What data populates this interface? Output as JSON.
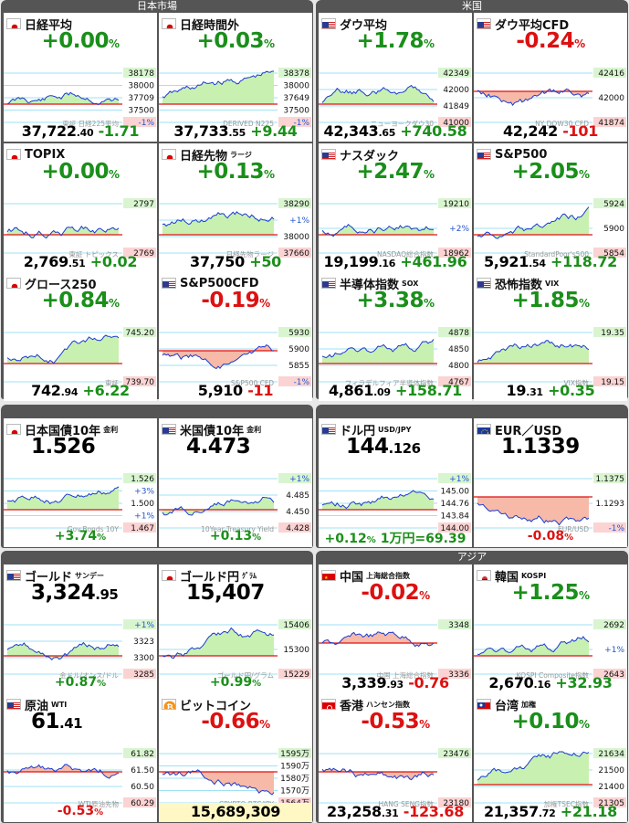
{
  "sections": {
    "japan": "日本市場",
    "us": "米国",
    "asia": "アジア"
  },
  "cards": {
    "nikkei": {
      "name": "日経平均",
      "sub": "",
      "change_pct_int": "+0.00",
      "change_pct_unit": "%",
      "ticks": [
        "38178",
        "38000",
        "37709",
        "37500",
        "-1%"
      ],
      "watermark": "東証 日経225平均",
      "price_int": "37,722",
      "price_dec": ".40",
      "change": "-1.71"
    },
    "nikkei_ah": {
      "name": "日経時間外",
      "sub": "",
      "change_pct_int": "+0.03",
      "change_pct_unit": "%",
      "ticks": [
        "38378",
        "38000",
        "37649",
        "37500",
        "-1%"
      ],
      "watermark": "DERIVED N225",
      "price_int": "37,733",
      "price_dec": ".55",
      "change": "+9.44"
    },
    "dow": {
      "name": "ダウ平均",
      "sub": "",
      "change_pct_int": "+1.78",
      "change_pct_unit": "%",
      "ticks": [
        "42349",
        "42000",
        "41849",
        "41000"
      ],
      "watermark": "ニューヨークダウ30",
      "price_int": "42,343",
      "price_dec": ".65",
      "change": "+740.58"
    },
    "dowcfd": {
      "name": "ダウ平均CFD",
      "sub": "",
      "change_pct_int": "-0.24",
      "change_pct_unit": "%",
      "ticks": [
        "42416",
        "42000",
        "41874"
      ],
      "watermark": "NY DOW30 CFD",
      "price_int": "42,242",
      "price_dec": "",
      "change": "-101"
    },
    "topix": {
      "name": "TOPIX",
      "sub": "",
      "change_pct_int": "+0.00",
      "change_pct_unit": "%",
      "ticks": [
        "2797",
        "2769"
      ],
      "watermark": "東証 トピックス",
      "price_int": "2,769",
      "price_dec": ".51",
      "change": "+0.02"
    },
    "nkfut": {
      "name": "日経先物",
      "sub": "ラージ",
      "change_pct_int": "+0.13",
      "change_pct_unit": "%",
      "ticks": [
        "38290",
        "+1%",
        "38000",
        "37660"
      ],
      "watermark": "日経先物ラージ",
      "price_int": "37,750",
      "price_dec": "",
      "change": "+50"
    },
    "nasdaq": {
      "name": "ナスダック",
      "sub": "",
      "change_pct_int": "+2.47",
      "change_pct_unit": "%",
      "ticks": [
        "19210",
        "+2%",
        "18962"
      ],
      "watermark": "NASDAQ総合指数",
      "price_int": "19,199",
      "price_dec": ".16",
      "change": "+461.96"
    },
    "sp500": {
      "name": "S&P500",
      "sub": "",
      "change_pct_int": "+2.05",
      "change_pct_unit": "%",
      "ticks": [
        "5924",
        "5900",
        "5854"
      ],
      "watermark": "StandardPoor's500",
      "price_int": "5,921",
      "price_dec": ".54",
      "change": "+118.72"
    },
    "growth": {
      "name": "グロース250",
      "sub": "",
      "change_pct_int": "+0.84",
      "change_pct_unit": "%",
      "ticks": [
        "745.20",
        "739.70"
      ],
      "watermark": "東証",
      "price_int": "742",
      "price_dec": ".94",
      "change": "+6.22"
    },
    "spcfd": {
      "name": "S&P500CFD",
      "sub": "",
      "change_pct_int": "-0.19",
      "change_pct_unit": "%",
      "ticks": [
        "5930",
        "5900",
        "5855",
        "-1%"
      ],
      "watermark": "S&P500 CFD",
      "price_int": "5,910",
      "price_dec": "",
      "change": "-11"
    },
    "sox": {
      "name": "半導体指数",
      "sub": "SOX",
      "change_pct_int": "+3.38",
      "change_pct_unit": "%",
      "ticks": [
        "4878",
        "4850",
        "4800",
        "4767"
      ],
      "watermark": "フィラデルフィア半導体指数",
      "price_int": "4,861",
      "price_dec": ".09",
      "change": "+158.71"
    },
    "vix": {
      "name": "恐怖指数",
      "sub": "VIX",
      "change_pct_int": "+1.85",
      "change_pct_unit": "%",
      "ticks": [
        "19.35",
        "19.15"
      ],
      "watermark": "VIX指数",
      "price_int": "19",
      "price_dec": ".31",
      "change": "+0.35"
    },
    "jgb": {
      "name": "日本国債10年",
      "sub": "金利",
      "value_int": "1.526",
      "ticks": [
        "1.526",
        "+3%",
        "1.500",
        "+1%",
        "1.467"
      ],
      "watermark": "Gov.Bonds 10Y",
      "change_pct_int": "+3.74",
      "change_pct_unit": "%"
    },
    "ust": {
      "name": "米国債10年",
      "sub": "金利",
      "value_int": "4.473",
      "ticks": [
        "+1%",
        "4.485",
        "4.450",
        "4.428"
      ],
      "watermark": "10Year Treasury Yield",
      "change_pct_int": "+0.13",
      "change_pct_unit": "%"
    },
    "usdjpy": {
      "name": "ドル円",
      "sub": "USD/JPY",
      "value_int": "144",
      "value_dec": ".126",
      "ticks": [
        "+1%",
        "145.00",
        "144.76",
        "143.84",
        "144.00"
      ],
      "change_pct_int": "+0.12",
      "change_pct_unit": "%",
      "note": "1万円=69.39"
    },
    "eurusd": {
      "name": "EUR／USD",
      "sub": "",
      "value_int": "1.1339",
      "ticks": [
        "1.1375",
        "1.1293",
        "-1%"
      ],
      "watermark": "EUR/USD",
      "change_pct_int": "-0.08",
      "change_pct_unit": "%"
    },
    "gold": {
      "name": "ゴールド",
      "sub": "サンデー",
      "value_int": "3,324",
      "value_dec": ".95",
      "ticks": [
        "+1%",
        "3323",
        "3300",
        "3285"
      ],
      "watermark": "金ドル/オンス/ドル",
      "change_pct_int": "+0.87",
      "change_pct_unit": "%"
    },
    "goldjpy": {
      "name": "ゴールド円",
      "sub": "ｸﾞﾗﾑ",
      "value_int": "15,407",
      "ticks": [
        "15406",
        "15300",
        "15229"
      ],
      "watermark": "ゴールド円/グラム",
      "change_pct_int": "+0.99",
      "change_pct_unit": "%"
    },
    "china": {
      "name": "中国",
      "sub": "上海総合指数",
      "change_pct_int": "-0.02",
      "change_pct_unit": "%",
      "ticks": [
        "3348",
        "3336"
      ],
      "watermark": "中国 上海総合指数",
      "price_int": "3,339",
      "price_dec": ".93",
      "change": "-0.76"
    },
    "korea": {
      "name": "韓国",
      "sub": "KOSPI",
      "change_pct_int": "+1.25",
      "change_pct_unit": "%",
      "ticks": [
        "2692",
        "+1%",
        "2643"
      ],
      "watermark": "KOSPI Composite指数",
      "price_int": "2,670",
      "price_dec": ".16",
      "change": "+32.93"
    },
    "oil": {
      "name": "原油",
      "sub": "WTI",
      "value_int": "61",
      "value_dec": ".41",
      "ticks": [
        "61.82",
        "61.50",
        "60.50",
        "60.29"
      ],
      "watermark": "WTI原油先物",
      "change_pct_int": "-0.53",
      "change_pct_unit": "%"
    },
    "btc": {
      "name": "ビットコイン",
      "sub": "",
      "change_pct_int": "-0.66",
      "change_pct_unit": "%",
      "ticks": [
        "1595万",
        "1590万",
        "1580万",
        "1570万",
        "1564万"
      ],
      "watermark": "CRYPTO BTC/JPY",
      "price_int": "15,689,309",
      "price_dec": ""
    },
    "hk": {
      "name": "香港",
      "sub": "ハンセン指数",
      "change_pct_int": "-0.53",
      "change_pct_unit": "%",
      "ticks": [
        "23476",
        "23180"
      ],
      "watermark": "HANG SENG指数",
      "price_int": "23,258",
      "price_dec": ".31",
      "change": "-123.68"
    },
    "taiwan": {
      "name": "台湾",
      "sub": "加権",
      "change_pct_int": "+0.10",
      "change_pct_unit": "%",
      "ticks": [
        "21634",
        "21500",
        "21400",
        "21305"
      ],
      "watermark": "加権TSEC指数",
      "price_int": "21,357",
      "price_dec": ".72",
      "change": "+21.18"
    }
  },
  "colors": {
    "up": "#1a8f1a",
    "down": "#dd1111",
    "line": "#1a3bd1",
    "fill_up": "#c8f0b0",
    "fill_down": "#f7b9a8",
    "panel": "#555555"
  }
}
